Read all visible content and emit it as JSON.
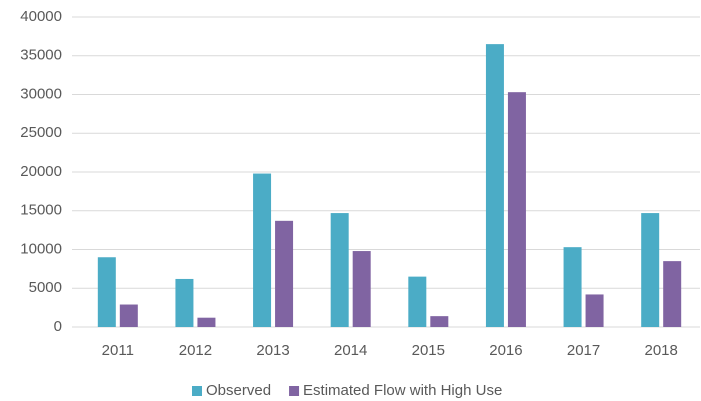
{
  "chart_data": {
    "type": "bar",
    "categories": [
      "2011",
      "2012",
      "2013",
      "2014",
      "2015",
      "2016",
      "2017",
      "2018"
    ],
    "series": [
      {
        "name": "Observed",
        "color": "#4bacc6",
        "values": [
          9000,
          6200,
          19800,
          14700,
          6500,
          36500,
          10300,
          14700
        ]
      },
      {
        "name": "Estimated Flow with High Use",
        "color": "#8064a2",
        "values": [
          2900,
          1200,
          13700,
          9800,
          1400,
          30300,
          4200,
          8500
        ]
      }
    ],
    "ylim": [
      0,
      40000
    ],
    "yticks": [
      0,
      5000,
      10000,
      15000,
      20000,
      25000,
      30000,
      35000,
      40000
    ],
    "grid": true,
    "legend": "bottom"
  }
}
